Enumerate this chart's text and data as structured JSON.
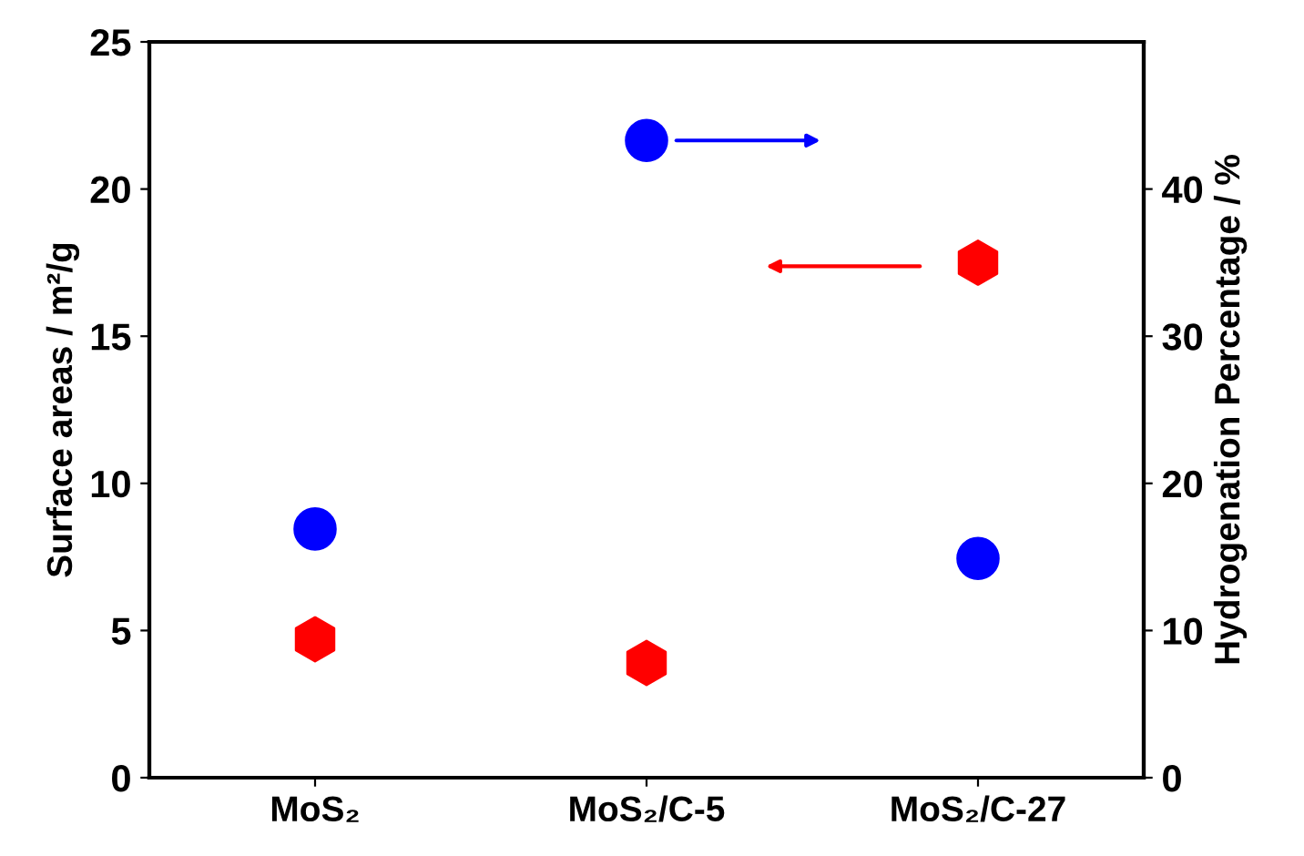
{
  "chart_data": {
    "type": "scatter",
    "ylabel": "Surface areas / m²/g",
    "y2label": "Hydrogenation Percentage / %",
    "categories": [
      "MoS₂",
      "MoS₂/C-5",
      "MoS₂/C-27"
    ],
    "ylim": [
      0,
      25
    ],
    "yticks": [
      0,
      5,
      10,
      15,
      20,
      25
    ],
    "y2lim": [
      0,
      50
    ],
    "y2ticks": [
      0,
      10,
      20,
      30,
      40
    ],
    "series": [
      {
        "color": "#ff0000",
        "values": [
          4.7,
          3.9,
          17.5
        ]
      },
      {
        "color": "#0000ff",
        "marker": "circle",
        "axis": "y2",
        "values": [
          16.9,
          43.3,
          14.9
        ]
      }
    ],
    "grid": false,
    "legend": false
  }
}
